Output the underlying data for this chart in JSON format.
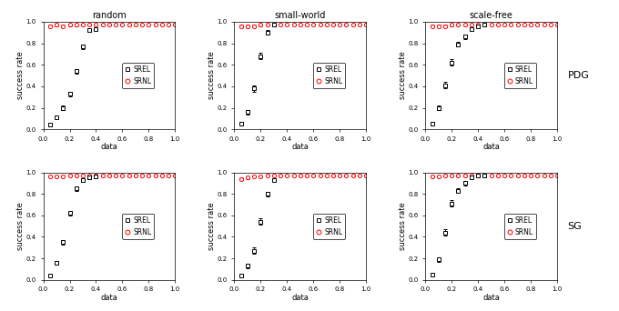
{
  "col_titles": [
    "random",
    "small-world",
    "scale-free"
  ],
  "row_labels": [
    "PDG",
    "SG"
  ],
  "xlabel": "data",
  "ylabel": "success rate",
  "xlim": [
    0.0,
    1.0
  ],
  "ylim": [
    0.0,
    1.0
  ],
  "xticks": [
    0.0,
    0.2,
    0.4,
    0.6,
    0.8,
    1.0
  ],
  "yticks": [
    0.0,
    0.2,
    0.4,
    0.6,
    0.8,
    1.0
  ],
  "srel_color": "black",
  "srnl_color": "red",
  "plots": {
    "PDG_random": {
      "srel_x": [
        0.05,
        0.1,
        0.15,
        0.2,
        0.25,
        0.3,
        0.35,
        0.4
      ],
      "srel_y": [
        0.04,
        0.11,
        0.2,
        0.33,
        0.54,
        0.77,
        0.92,
        0.93
      ],
      "srel_yerr": [
        0.01,
        0.01,
        0.02,
        0.02,
        0.02,
        0.02,
        0.01,
        0.01
      ],
      "srnl_x": [
        0.05,
        0.1,
        0.15,
        0.2,
        0.25,
        0.3,
        0.35,
        0.4,
        0.45,
        0.5,
        0.55,
        0.6,
        0.65,
        0.7,
        0.75,
        0.8,
        0.85,
        0.9,
        0.95,
        1.0
      ],
      "srnl_y": [
        0.96,
        0.97,
        0.96,
        0.97,
        0.97,
        0.97,
        0.97,
        0.97,
        0.97,
        0.97,
        0.97,
        0.97,
        0.97,
        0.97,
        0.97,
        0.97,
        0.97,
        0.97,
        0.97,
        0.97
      ],
      "srnl_yerr": [
        0.01,
        0.01,
        0.01,
        0.01,
        0.01,
        0.005,
        0.005,
        0.005,
        0.005,
        0.005,
        0.005,
        0.005,
        0.005,
        0.005,
        0.005,
        0.005,
        0.005,
        0.005,
        0.005,
        0.005
      ]
    },
    "PDG_small-world": {
      "srel_x": [
        0.05,
        0.1,
        0.15,
        0.2,
        0.25,
        0.3
      ],
      "srel_y": [
        0.05,
        0.16,
        0.38,
        0.68,
        0.9,
        0.97
      ],
      "srel_yerr": [
        0.01,
        0.02,
        0.03,
        0.03,
        0.02,
        0.01
      ],
      "srnl_x": [
        0.05,
        0.1,
        0.15,
        0.2,
        0.25,
        0.3,
        0.35,
        0.4,
        0.45,
        0.5,
        0.55,
        0.6,
        0.65,
        0.7,
        0.75,
        0.8,
        0.85,
        0.9,
        0.95,
        1.0
      ],
      "srnl_y": [
        0.96,
        0.96,
        0.96,
        0.97,
        0.97,
        0.97,
        0.97,
        0.97,
        0.97,
        0.97,
        0.97,
        0.97,
        0.97,
        0.97,
        0.97,
        0.97,
        0.97,
        0.97,
        0.97,
        0.97
      ],
      "srnl_yerr": [
        0.01,
        0.01,
        0.01,
        0.01,
        0.005,
        0.005,
        0.005,
        0.005,
        0.005,
        0.005,
        0.005,
        0.005,
        0.005,
        0.005,
        0.005,
        0.005,
        0.005,
        0.005,
        0.005,
        0.005
      ]
    },
    "PDG_scale-free": {
      "srel_x": [
        0.05,
        0.1,
        0.15,
        0.2,
        0.25,
        0.3,
        0.35,
        0.4,
        0.45
      ],
      "srel_y": [
        0.05,
        0.2,
        0.41,
        0.62,
        0.79,
        0.86,
        0.93,
        0.96,
        0.97
      ],
      "srel_yerr": [
        0.01,
        0.02,
        0.03,
        0.03,
        0.02,
        0.02,
        0.01,
        0.01,
        0.005
      ],
      "srnl_x": [
        0.05,
        0.1,
        0.15,
        0.2,
        0.25,
        0.3,
        0.35,
        0.4,
        0.45,
        0.5,
        0.55,
        0.6,
        0.65,
        0.7,
        0.75,
        0.8,
        0.85,
        0.9,
        0.95,
        1.0
      ],
      "srnl_y": [
        0.96,
        0.96,
        0.96,
        0.97,
        0.97,
        0.97,
        0.97,
        0.97,
        0.97,
        0.97,
        0.97,
        0.97,
        0.97,
        0.97,
        0.97,
        0.97,
        0.97,
        0.97,
        0.97,
        0.97
      ],
      "srnl_yerr": [
        0.01,
        0.01,
        0.01,
        0.01,
        0.005,
        0.005,
        0.005,
        0.005,
        0.005,
        0.005,
        0.005,
        0.005,
        0.005,
        0.005,
        0.005,
        0.005,
        0.005,
        0.005,
        0.005,
        0.005
      ]
    },
    "SG_random": {
      "srel_x": [
        0.05,
        0.1,
        0.15,
        0.2,
        0.25,
        0.3,
        0.35,
        0.4
      ],
      "srel_y": [
        0.04,
        0.16,
        0.35,
        0.62,
        0.85,
        0.93,
        0.95,
        0.96
      ],
      "srel_yerr": [
        0.01,
        0.02,
        0.02,
        0.02,
        0.02,
        0.01,
        0.01,
        0.005
      ],
      "srnl_x": [
        0.05,
        0.1,
        0.15,
        0.2,
        0.25,
        0.3,
        0.35,
        0.4,
        0.45,
        0.5,
        0.55,
        0.6,
        0.65,
        0.7,
        0.75,
        0.8,
        0.85,
        0.9,
        0.95,
        1.0
      ],
      "srnl_y": [
        0.96,
        0.96,
        0.96,
        0.97,
        0.97,
        0.97,
        0.97,
        0.97,
        0.97,
        0.97,
        0.97,
        0.97,
        0.97,
        0.97,
        0.97,
        0.97,
        0.97,
        0.97,
        0.97,
        0.97
      ],
      "srnl_yerr": [
        0.01,
        0.01,
        0.01,
        0.01,
        0.005,
        0.005,
        0.005,
        0.005,
        0.005,
        0.005,
        0.005,
        0.005,
        0.005,
        0.005,
        0.005,
        0.005,
        0.005,
        0.005,
        0.005,
        0.005
      ]
    },
    "SG_small-world": {
      "srel_x": [
        0.05,
        0.1,
        0.15,
        0.2,
        0.25,
        0.3
      ],
      "srel_y": [
        0.04,
        0.13,
        0.27,
        0.54,
        0.8,
        0.93
      ],
      "srel_yerr": [
        0.01,
        0.02,
        0.03,
        0.03,
        0.02,
        0.01
      ],
      "srnl_x": [
        0.05,
        0.1,
        0.15,
        0.2,
        0.25,
        0.3,
        0.35,
        0.4,
        0.45,
        0.5,
        0.55,
        0.6,
        0.65,
        0.7,
        0.75,
        0.8,
        0.85,
        0.9,
        0.95,
        1.0
      ],
      "srnl_y": [
        0.94,
        0.95,
        0.96,
        0.96,
        0.97,
        0.97,
        0.97,
        0.97,
        0.97,
        0.97,
        0.97,
        0.97,
        0.97,
        0.97,
        0.97,
        0.97,
        0.97,
        0.97,
        0.97,
        0.97
      ],
      "srnl_yerr": [
        0.01,
        0.01,
        0.01,
        0.01,
        0.005,
        0.005,
        0.005,
        0.005,
        0.005,
        0.005,
        0.005,
        0.005,
        0.005,
        0.005,
        0.005,
        0.005,
        0.005,
        0.005,
        0.005,
        0.005
      ]
    },
    "SG_scale-free": {
      "srel_x": [
        0.05,
        0.1,
        0.15,
        0.2,
        0.25,
        0.3,
        0.35,
        0.4,
        0.45
      ],
      "srel_y": [
        0.05,
        0.19,
        0.44,
        0.71,
        0.83,
        0.9,
        0.95,
        0.97,
        0.97
      ],
      "srel_yerr": [
        0.01,
        0.02,
        0.03,
        0.03,
        0.02,
        0.02,
        0.01,
        0.005,
        0.005
      ],
      "srnl_x": [
        0.05,
        0.1,
        0.15,
        0.2,
        0.25,
        0.3,
        0.35,
        0.4,
        0.45,
        0.5,
        0.55,
        0.6,
        0.65,
        0.7,
        0.75,
        0.8,
        0.85,
        0.9,
        0.95,
        1.0
      ],
      "srnl_y": [
        0.96,
        0.96,
        0.97,
        0.97,
        0.97,
        0.97,
        0.97,
        0.97,
        0.97,
        0.97,
        0.97,
        0.97,
        0.97,
        0.97,
        0.97,
        0.97,
        0.97,
        0.97,
        0.97,
        0.97
      ],
      "srnl_yerr": [
        0.01,
        0.01,
        0.01,
        0.005,
        0.005,
        0.005,
        0.005,
        0.005,
        0.005,
        0.005,
        0.005,
        0.005,
        0.005,
        0.005,
        0.005,
        0.005,
        0.005,
        0.005,
        0.005,
        0.005
      ]
    }
  },
  "tick_fontsize": 5,
  "label_fontsize": 6,
  "title_fontsize": 7,
  "row_label_fontsize": 8,
  "legend_fontsize": 5.5,
  "marker_size": 3.0,
  "elinewidth": 0.6,
  "capsize": 1.2,
  "markeredgewidth": 0.7
}
